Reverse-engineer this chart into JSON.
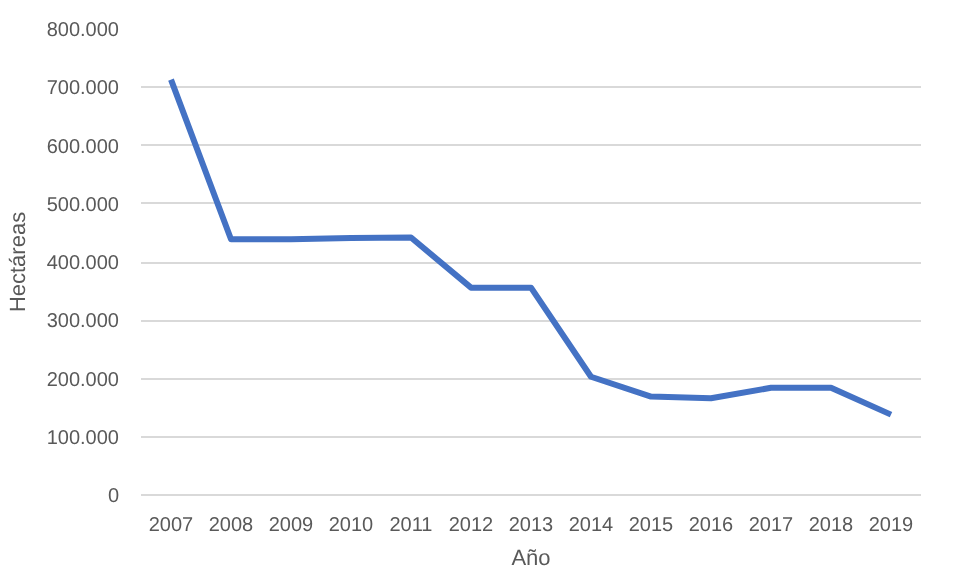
{
  "chart_data": {
    "type": "line",
    "xlabel": "Año",
    "ylabel": "Hectáreas",
    "categories": [
      "2007",
      "2008",
      "2009",
      "2010",
      "2011",
      "2012",
      "2013",
      "2014",
      "2015",
      "2016",
      "2017",
      "2018",
      "2019"
    ],
    "series": [
      {
        "color": "#4472c4",
        "values": [
          713000,
          439000,
          439000,
          441000,
          442000,
          356000,
          356000,
          203000,
          169000,
          166000,
          184000,
          184000,
          138000
        ]
      }
    ],
    "ylim": [
      0,
      800000
    ],
    "yticks": [
      0,
      {
        "value": 100000,
        "label": "100.000"
      },
      {
        "value": 200000,
        "label": "200.000"
      },
      {
        "value": 300000,
        "label": "300.000"
      },
      {
        "value": 400000,
        "label": "400.000"
      },
      {
        "value": 500000,
        "label": "500.000"
      },
      {
        "value": 600000,
        "label": "600.000"
      },
      {
        "value": 700000,
        "label": "700.000"
      },
      {
        "value": 800000,
        "label": "800.000"
      }
    ],
    "grid": "y",
    "marker": "none",
    "line_style": "solid"
  }
}
